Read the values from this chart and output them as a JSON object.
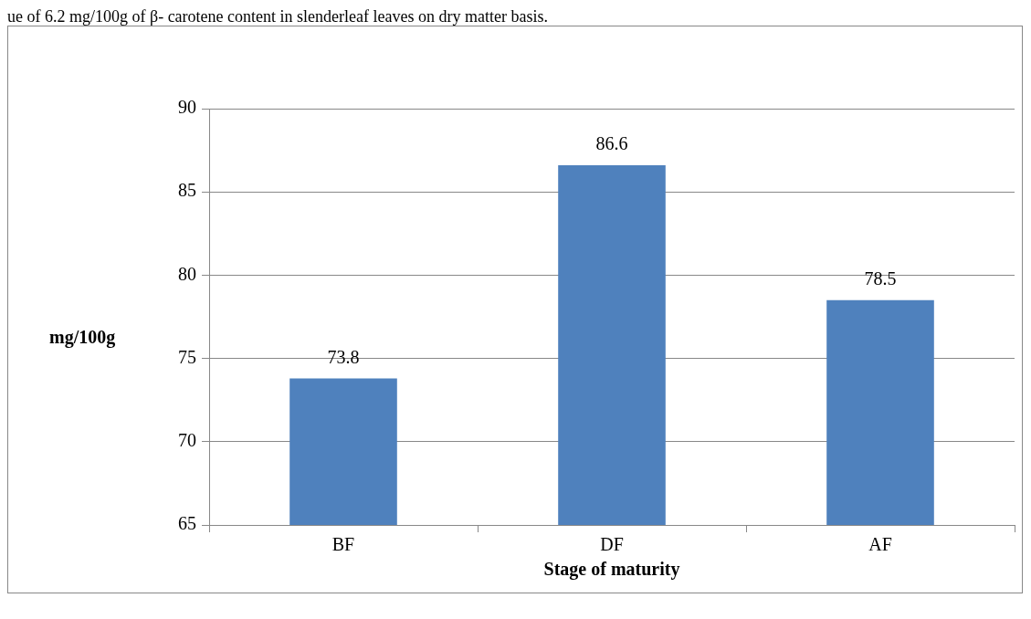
{
  "chart_data": {
    "type": "bar",
    "annotations": [
      "ue of 6.2 mg/100g of β- carotene content in slenderleaf leaves on dry matter basis."
    ],
    "xlabel": "Stage of maturity",
    "ylabel": "mg/100g",
    "categories": [
      "BF",
      "DF",
      "AF"
    ],
    "values": [
      73.8,
      86.6,
      78.5
    ],
    "color": "#4f81bd",
    "ylim": [
      65,
      90
    ],
    "yticks": [
      65,
      70,
      75,
      80,
      85,
      90
    ],
    "grid": "y",
    "data_labels": true
  }
}
